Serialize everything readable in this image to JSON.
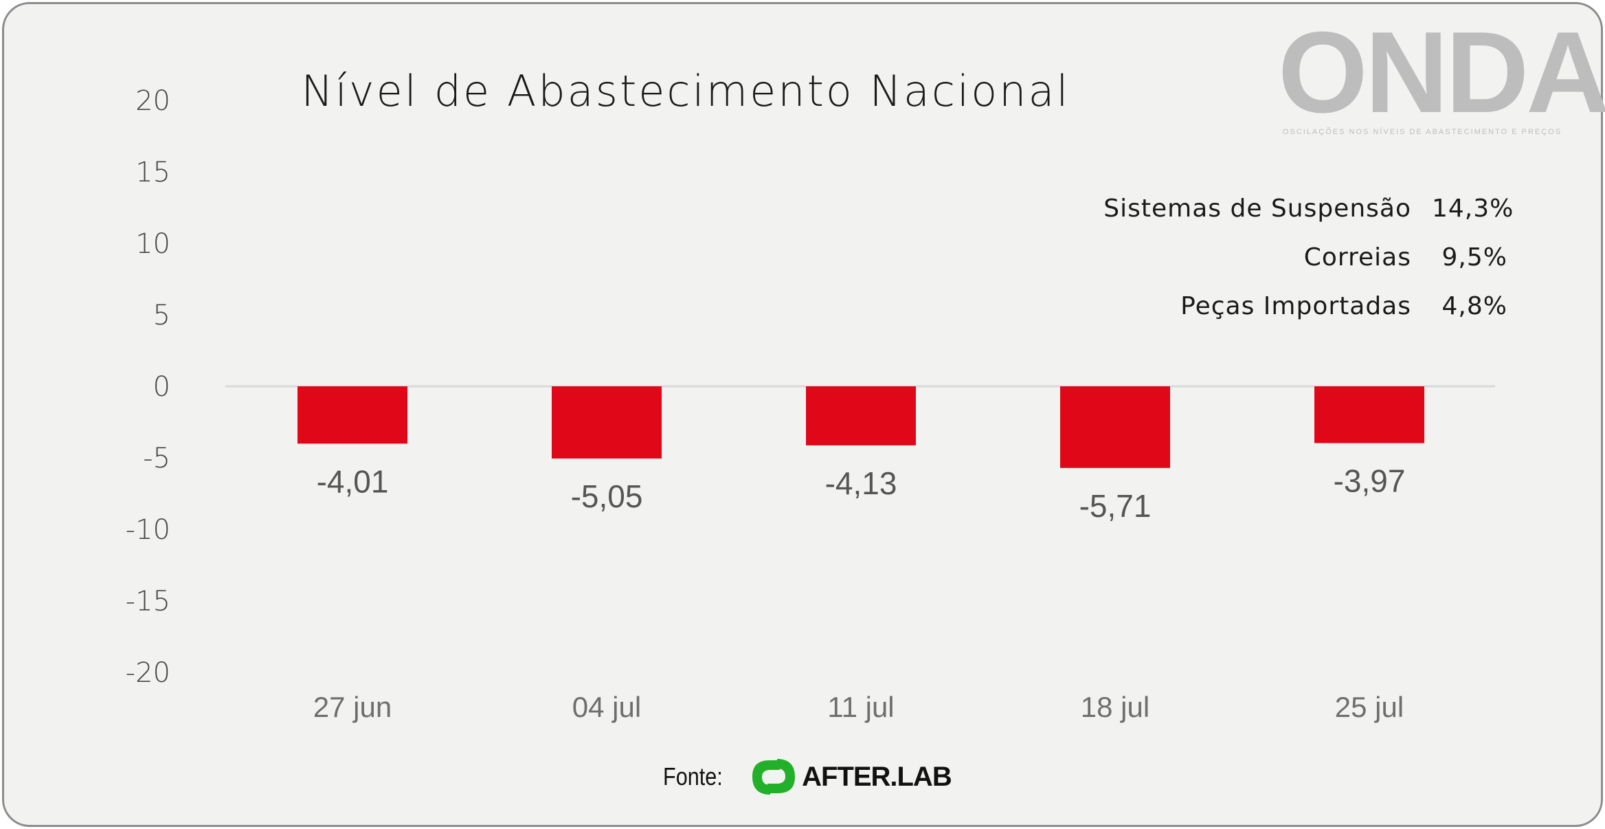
{
  "chart_data": {
    "type": "bar",
    "title": "Nível de Abastecimento Nacional",
    "categories": [
      "27 jun",
      "04 jul",
      "11 jul",
      "18 jul",
      "25 jul"
    ],
    "values": [
      -4.01,
      -5.05,
      -4.13,
      -5.71,
      -3.97
    ],
    "value_labels": [
      "-4,01",
      "-5,05",
      "-4,13",
      "-5,71",
      "-3,97"
    ],
    "ylim": [
      -20,
      20
    ],
    "yticks": [
      20,
      15,
      10,
      5,
      0,
      -5,
      -10,
      -15,
      -20
    ],
    "ytick_labels": [
      "20",
      "15",
      "10",
      "5",
      "0",
      "-5",
      "-10",
      "-15",
      "-20"
    ],
    "xlabel": "",
    "ylabel": "",
    "bar_color": "#e00818"
  },
  "brand": {
    "name": "ONDA",
    "tagline": "OSCILAÇÕES NOS NÍVEIS DE ABASTECIMENTO E PREÇOS"
  },
  "legend": [
    {
      "name": "Sistemas de Suspensão",
      "value": "14,3%"
    },
    {
      "name": "Correias",
      "value": "9,5%"
    },
    {
      "name": "Peças Importadas",
      "value": "4,8%"
    }
  ],
  "source": {
    "label": "Fonte:",
    "brand": "AFTER.LAB",
    "brand_color": "#22b02a"
  }
}
